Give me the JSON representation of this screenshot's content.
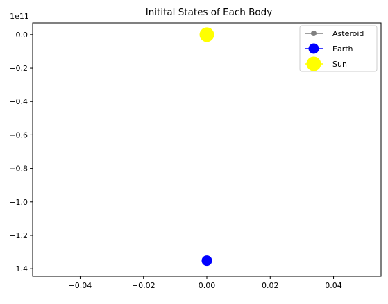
{
  "chart_data": {
    "type": "scatter",
    "title": "Initital States of Each Body",
    "xlabel": "",
    "ylabel": "",
    "y_offset_label": "1e11",
    "y_scale": 100000000000.0,
    "xlim": [
      -0.055,
      0.055
    ],
    "ylim": [
      -1.445,
      0.07
    ],
    "x_ticks": [
      -0.04,
      -0.02,
      0.0,
      0.02,
      0.04
    ],
    "x_tick_labels": [
      "−0.04",
      "−0.02",
      "0.00",
      "0.02",
      "0.04"
    ],
    "y_ticks": [
      0.0,
      -0.2,
      -0.4,
      -0.6,
      -0.8,
      -1.0,
      -1.2,
      -1.4
    ],
    "y_tick_labels": [
      "0.0",
      "−0.2",
      "−0.4",
      "−0.6",
      "−0.8",
      "−1.0",
      "−1.2",
      "−1.4"
    ],
    "grid": false,
    "legend_position": "top-right",
    "series": [
      {
        "name": "Asteroid",
        "color": "#808080",
        "marker_size": "small",
        "x": [
          0.0
        ],
        "y": [
          -1.36
        ]
      },
      {
        "name": "Earth",
        "color": "#0000ff",
        "marker_size": "medium",
        "x": [
          0.0
        ],
        "y": [
          -1.352
        ]
      },
      {
        "name": "Sun",
        "color": "#ffff00",
        "marker_size": "large",
        "x": [
          0.0
        ],
        "y": [
          0.0
        ]
      }
    ]
  }
}
